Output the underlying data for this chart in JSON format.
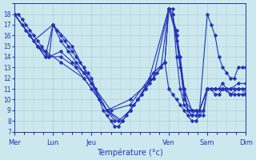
{
  "title": "Température (°c)",
  "bg_color": "#cce8ee",
  "grid_color": "#aaccd4",
  "line_color": "#2233bb",
  "marker": "D",
  "marker_size": 2.0,
  "line_width": 0.8,
  "ylim": [
    7,
    19
  ],
  "yticks": [
    7,
    8,
    9,
    10,
    11,
    12,
    13,
    14,
    15,
    16,
    17,
    18
  ],
  "xlim": [
    0,
    120
  ],
  "day_positions": [
    0,
    20,
    40,
    80,
    100,
    120
  ],
  "day_labels": [
    "Mer",
    "Lun",
    "Jeu",
    "Ven",
    "Sam",
    "Dim"
  ],
  "series": [
    [
      0,
      18,
      2,
      18,
      4,
      17.5,
      6,
      17,
      8,
      16.5,
      10,
      16,
      12,
      15.5,
      14,
      15,
      16,
      14.5,
      18,
      14,
      20,
      17,
      22,
      16.5,
      24,
      16,
      26,
      15.5,
      28,
      15,
      30,
      14.5,
      32,
      14,
      34,
      13.5,
      36,
      13,
      38,
      12.5,
      40,
      12,
      42,
      11,
      44,
      10,
      46,
      9,
      48,
      8.5,
      50,
      8,
      52,
      7.5,
      54,
      7.5,
      56,
      8,
      58,
      8.5,
      60,
      9,
      62,
      9.5,
      64,
      10,
      66,
      10.5,
      68,
      11,
      70,
      11.5,
      72,
      12,
      74,
      12.5,
      76,
      13,
      78,
      13.5,
      80,
      11,
      82,
      10.5,
      84,
      10,
      86,
      9.5,
      88,
      9,
      90,
      8.5,
      92,
      8,
      94,
      8,
      96,
      8.5,
      98,
      9,
      100,
      11,
      102,
      11,
      104,
      10.5,
      106,
      10.5,
      108,
      11,
      110,
      11,
      112,
      11,
      114,
      11,
      116,
      11,
      118,
      11,
      120,
      10.5
    ],
    [
      0,
      18,
      4,
      17,
      8,
      16,
      12,
      15,
      16,
      14,
      20,
      17,
      24,
      15.5,
      28,
      14.5,
      32,
      13.5,
      36,
      12.5,
      40,
      11.5,
      44,
      10,
      48,
      9,
      52,
      8,
      56,
      8,
      60,
      9,
      64,
      10,
      68,
      11,
      72,
      12,
      76,
      13,
      80,
      18.5,
      82,
      18,
      84,
      16,
      86,
      14,
      88,
      11,
      90,
      9,
      92,
      8.5,
      94,
      9,
      96,
      8.5,
      98,
      8.5,
      100,
      11,
      102,
      11,
      104,
      11,
      106,
      11,
      108,
      11.5,
      110,
      11,
      112,
      10.5,
      114,
      10.5,
      116,
      10.5,
      118,
      10.5,
      120,
      10.5
    ],
    [
      0,
      18,
      6,
      16.5,
      12,
      15,
      18,
      14,
      24,
      14.5,
      30,
      13.5,
      36,
      12.5,
      42,
      11,
      48,
      9,
      54,
      8,
      60,
      9,
      66,
      10.5,
      72,
      12.5,
      78,
      13.5,
      80,
      18.5,
      82,
      18,
      84,
      15.5,
      86,
      13,
      88,
      10.5,
      90,
      9,
      92,
      8.5,
      94,
      8.5,
      96,
      9,
      100,
      11,
      104,
      11,
      108,
      11,
      112,
      10.5,
      116,
      11,
      120,
      11
    ],
    [
      0,
      18,
      8,
      16,
      16,
      14,
      24,
      14,
      32,
      13,
      40,
      11,
      48,
      9,
      56,
      8,
      64,
      10,
      72,
      12.5,
      78,
      13.5,
      80,
      18.5,
      82,
      18.5,
      84,
      14,
      86,
      11,
      88,
      9.5,
      90,
      9,
      92,
      9,
      96,
      9,
      100,
      11,
      104,
      11,
      108,
      11,
      112,
      11,
      116,
      11.5,
      120,
      11.5
    ],
    [
      0,
      18,
      10,
      15.5,
      20,
      17,
      30,
      15,
      40,
      11.5,
      50,
      9,
      60,
      9.5,
      70,
      12,
      80,
      18.5,
      84,
      16.5,
      88,
      10,
      92,
      9,
      96,
      9,
      100,
      11,
      104,
      11,
      108,
      11,
      112,
      11,
      116,
      11,
      120,
      11
    ],
    [
      0,
      18,
      12,
      15,
      24,
      13.5,
      36,
      12,
      48,
      9,
      60,
      10,
      72,
      12,
      80,
      18.5,
      84,
      16,
      88,
      11,
      92,
      9,
      96,
      9,
      100,
      18,
      102,
      17,
      104,
      16,
      106,
      14,
      108,
      13,
      110,
      12.5,
      112,
      12,
      114,
      12,
      116,
      13,
      118,
      13,
      120,
      13
    ]
  ]
}
